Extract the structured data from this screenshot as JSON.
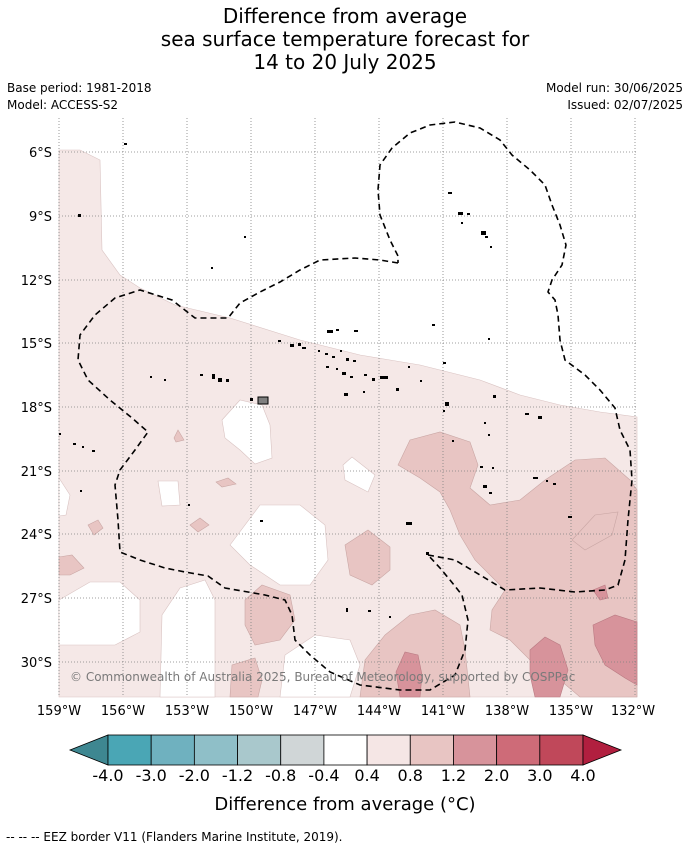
{
  "header": {
    "title_lines": [
      "Difference from average",
      "sea surface temperature forecast for",
      "14 to 20 July 2025"
    ],
    "base_period": "Base period: 1981-2018",
    "model": "Model: ACCESS-S2",
    "model_run": "Model run: 30/06/2025",
    "issued": "Issued: 02/07/2025"
  },
  "map": {
    "lat_labels": [
      "6°S",
      "9°S",
      "12°S",
      "15°S",
      "18°S",
      "21°S",
      "24°S",
      "27°S",
      "30°S"
    ],
    "lon_labels": [
      "159°W",
      "156°W",
      "153°W",
      "150°W",
      "147°W",
      "144°W",
      "141°W",
      "138°W",
      "135°W",
      "132°W"
    ],
    "copyright": "© Commonwealth of Australia 2025, Bureau of Meteorology, supported by COSPPac",
    "colors": {
      "land_bg": "#ffffff",
      "band_0_4_0_8": "#f5e8e7",
      "band_0_8_1_2": "#e8c5c3",
      "band_1_2_2_0": "#d7939b",
      "band_2_0_3_0": "#c9707e",
      "eez": "#000000"
    }
  },
  "colorbar": {
    "colors": [
      "#3e8791",
      "#4aa6b5",
      "#6fb1bf",
      "#8fbfc8",
      "#a9c8cc",
      "#d0d6d7",
      "#ffffff",
      "#f5e6e5",
      "#e8c5c3",
      "#d7939b",
      "#ce6b78",
      "#c0485a",
      "#b11f3f"
    ],
    "tick_labels": [
      "-4.0",
      "-3.0",
      "-2.0",
      "-1.2",
      "-0.8",
      "-0.4",
      "0.4",
      "0.8",
      "1.2",
      "2.0",
      "3.0",
      "4.0"
    ],
    "title": "Difference from average (°C)"
  },
  "footer": "--  --  -- EEZ border V11 (Flanders Marine Institute, 2019)."
}
